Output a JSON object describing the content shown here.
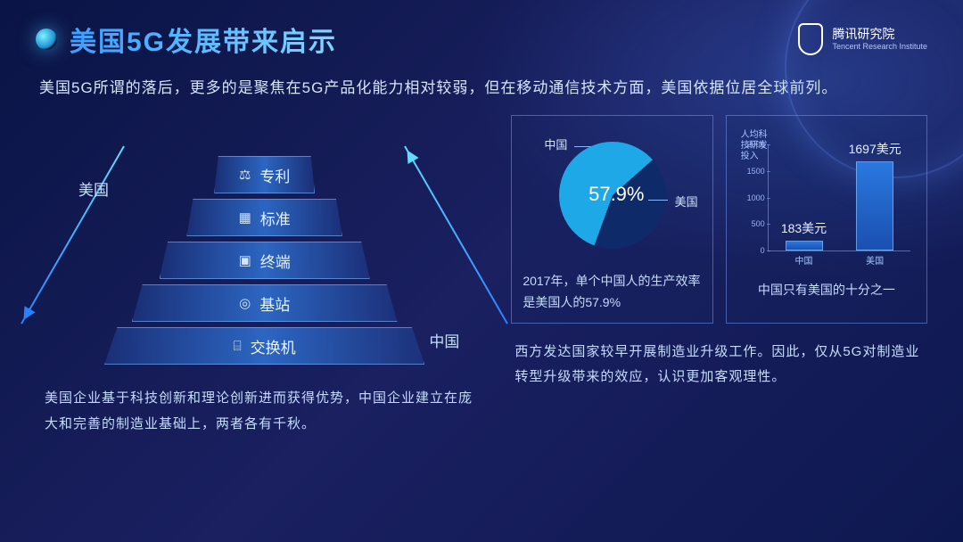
{
  "header": {
    "title": "美国5G发展带来启示",
    "logo_name": "腾讯研究院",
    "logo_sub": "Tencent\nResearch Institute"
  },
  "subtitle": "美国5G所谓的落后，更多的是聚焦在5G产品化能力相对较弱，但在移动通信技术方面，美国依据位居全球前列。",
  "pyramid": {
    "type": "pyramid",
    "tiers": [
      {
        "label": "专利",
        "icon": "⚖",
        "width_pct": 22
      },
      {
        "label": "标准",
        "icon": "▦",
        "width_pct": 34
      },
      {
        "label": "终端",
        "icon": "▣",
        "width_pct": 46
      },
      {
        "label": "基站",
        "icon": "◎",
        "width_pct": 58
      },
      {
        "label": "交换机",
        "icon": "⌸",
        "width_pct": 70
      }
    ],
    "arrow_top_label": "美国",
    "arrow_bottom_label": "中国",
    "tier_gradient": [
      "#1e3c8c",
      "#3278dc",
      "#1e3c8c"
    ],
    "arrow_color_top": "#5fdcff",
    "arrow_color_bottom": "#2a80ff"
  },
  "left_caption": "美国企业基于科技创新和理论创新进而获得优势，中国企业建立在庞大和完善的制造业基础上，两者各有千秋。",
  "pie": {
    "type": "pie",
    "center_value": "57.9%",
    "slices": [
      {
        "label": "中国",
        "pct": 57.9,
        "color": "#1fa8e8"
      },
      {
        "label": "美国",
        "pct": 42.1,
        "color": "#0e2a68"
      }
    ],
    "caption": "2017年，单个中国人的生产效率是美国人的57.9%"
  },
  "bar": {
    "type": "bar",
    "ylabel": "人均科技研发投入",
    "ylim": [
      0,
      2000
    ],
    "ytick_step": 500,
    "categories": [
      "中国",
      "美国"
    ],
    "values": [
      183,
      1697
    ],
    "value_labels": [
      "183美元",
      "1697美元"
    ],
    "bar_color": "#2a78e0",
    "axis_color": "#96b4ff",
    "caption": "中国只有美国的十分之一"
  },
  "right_caption": "西方发达国家较早开展制造业升级工作。因此，仅从5G对制造业转型升级带来的效应，认识更加客观理性。",
  "colors": {
    "background_from": "#0a1445",
    "background_to": "#1a2060",
    "title_gradient_from": "#3a9fff",
    "title_gradient_to": "#7fd5ff",
    "text_body": "#c5dcff",
    "card_border": "#78a0ff"
  }
}
